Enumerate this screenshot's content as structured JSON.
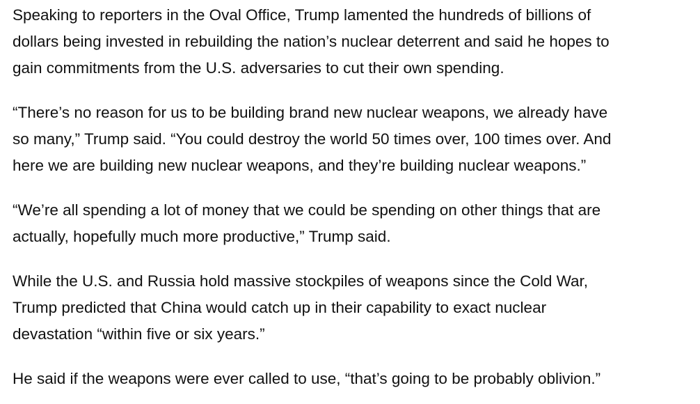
{
  "article": {
    "paragraphs": [
      {
        "lines": [
          "Speaking to reporters in the Oval Office, Trump lamented the hundreds of billions of",
          "dollars being invested in rebuilding the nation’s nuclear deterrent and said he hopes to",
          "gain commitments from the U.S. adversaries to cut their own spending."
        ]
      },
      {
        "lines": [
          "“There’s no reason for us to be building brand new nuclear weapons, we already have",
          "so many,” Trump said. “You could destroy the world 50 times over, 100 times over. And",
          "here we are building new nuclear weapons, and they’re building nuclear weapons.”"
        ]
      },
      {
        "lines": [
          "“We’re all spending a lot of money that we could be spending on other things that are",
          "actually, hopefully much more productive,” Trump said."
        ]
      },
      {
        "lines": [
          "While the U.S. and Russia hold massive stockpiles of weapons since the Cold War,",
          "Trump predicted that China would catch up in their capability to exact nuclear",
          "devastation “within five or six years.”"
        ]
      },
      {
        "lines": [
          "He said if the weapons were ever called to use, “that’s going to be probably oblivion.”"
        ]
      }
    ]
  }
}
